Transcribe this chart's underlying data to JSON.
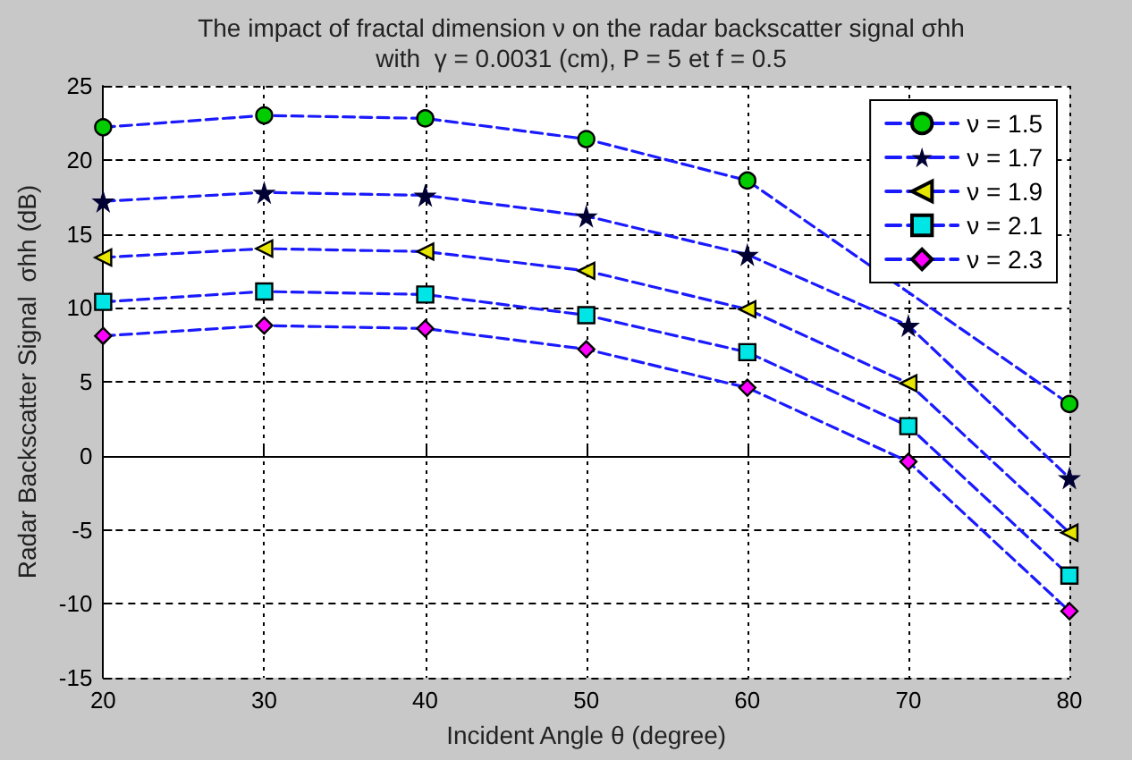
{
  "chart_data": {
    "type": "line",
    "title": "The impact of fractal dimension ν on the radar backscatter signal σhh\nwith  γ = 0.0031 (cm), P = 5 et f = 0.5",
    "xlabel": "Incident Angle θ (degree)",
    "ylabel": "Radar Backscatter Signal  σhh (dB)",
    "x": [
      20,
      30,
      40,
      50,
      60,
      70,
      80
    ],
    "xlim": [
      20,
      80
    ],
    "xticks": [
      20,
      30,
      40,
      50,
      60,
      70,
      80
    ],
    "ylim": [
      -15,
      25
    ],
    "yticks": [
      -15,
      -10,
      -5,
      0,
      5,
      10,
      15,
      20,
      25
    ],
    "grid": true,
    "legend": "top right",
    "line_style": "dashed",
    "series": [
      {
        "name": "ν = 1.5",
        "color": "#00cc00",
        "marker": "circle",
        "values": [
          22.2,
          23,
          22.8,
          21.4,
          18.6,
          null,
          3.5
        ]
      },
      {
        "name": "ν = 1.7",
        "color": "#000033",
        "marker": "star",
        "values": [
          17.2,
          17.8,
          17.6,
          16.2,
          13.6,
          8.8,
          -1.5
        ]
      },
      {
        "name": "ν = 1.9",
        "color": "#e6e600",
        "marker": "triangle",
        "values": [
          13.4,
          14,
          13.8,
          12.5,
          9.9,
          4.9,
          -5.2
        ]
      },
      {
        "name": "ν = 2.1",
        "color": "#00e6e6",
        "marker": "square",
        "values": [
          10.4,
          11.1,
          10.9,
          9.5,
          7,
          2,
          -8.1
        ]
      },
      {
        "name": "ν = 2.3",
        "color": "#ff00ff",
        "marker": "diamond",
        "values": [
          8.1,
          8.8,
          8.6,
          7.2,
          4.6,
          -0.4,
          -10.5
        ]
      }
    ]
  }
}
